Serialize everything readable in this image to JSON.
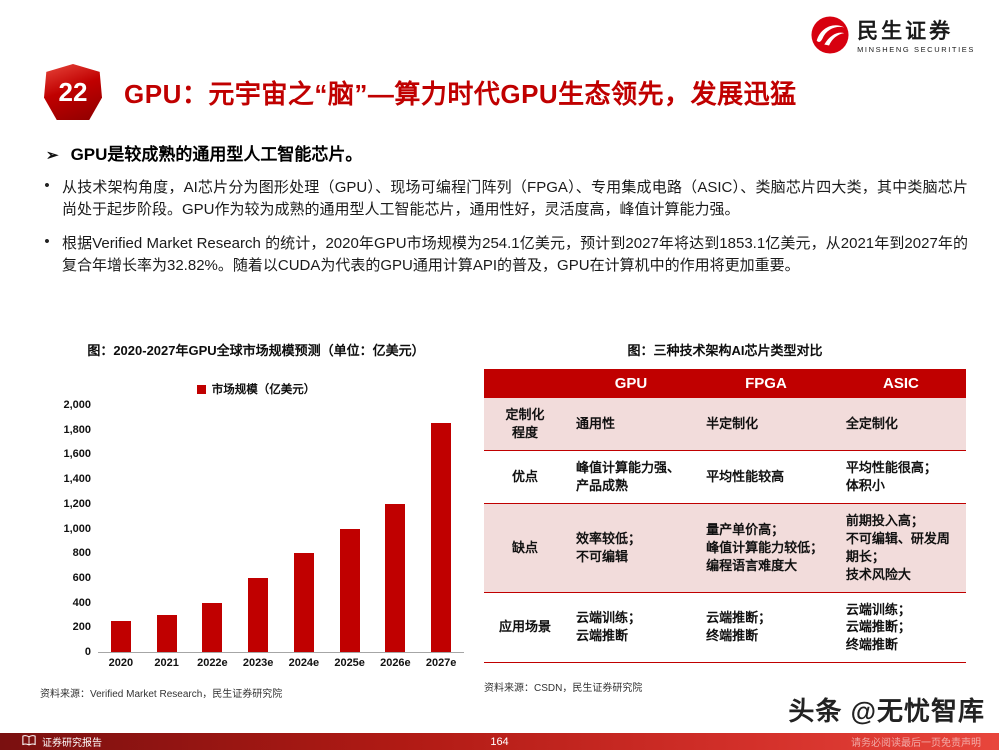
{
  "accent_color": "#c00000",
  "logo": {
    "name": "民生证券",
    "subtitle": "MINSHENG SECURITIES"
  },
  "header": {
    "badge": "22",
    "title": "GPU：元宇宙之“脑”—算力时代GPU生态领先，发展迅猛"
  },
  "summary": {
    "marker": "➢",
    "heading": "GPU是较成熟的通用型人工智能芯片。",
    "bullet_marker": "•",
    "bullets": [
      "从技术架构角度，AI芯片分为图形处理（GPU）、现场可编程门阵列（FPGA）、专用集成电路（ASIC）、类脑芯片四大类，其中类脑芯片尚处于起步阶段。GPU作为较为成熟的通用型人工智能芯片，通用性好，灵活度高，峰值计算能力强。",
      "根据Verified Market Research 的统计，2020年GPU市场规模为254.1亿美元，预计到2027年将达到1853.1亿美元，从2021年到2027年的复合年增长率为32.82%。随着以CUDA为代表的GPU通用计算API的普及，GPU在计算机中的作用将更加重要。"
    ]
  },
  "chart": {
    "title": "图：2020-2027年GPU全球市场规模预测（单位：亿美元）",
    "legend": "市场规模（亿美元）",
    "source": "资料来源：Verified Market Research，民生证券研究院"
  },
  "chart_data": {
    "type": "bar",
    "title": "2020-2027年GPU全球市场规模预测（单位：亿美元）",
    "categories": [
      "2020",
      "2021",
      "2022e",
      "2023e",
      "2024e",
      "2025e",
      "2026e",
      "2027e"
    ],
    "values": [
      254.1,
      300,
      400,
      600,
      800,
      1000,
      1200,
      1853.1
    ],
    "series_name": "市场规模（亿美元）",
    "xlabel": "",
    "ylabel": "",
    "ylim": [
      0,
      2000
    ],
    "yticks": [
      "0",
      "200",
      "400",
      "600",
      "800",
      "1,000",
      "1,200",
      "1,400",
      "1,600",
      "1,800",
      "2,000"
    ],
    "bar_color": "#c00000",
    "grid": false,
    "legend_position": "top"
  },
  "table": {
    "title": "图：三种技术架构AI芯片类型对比",
    "headers": [
      "",
      "GPU",
      "FPGA",
      "ASIC"
    ],
    "rows": [
      {
        "label": "定制化\n程度",
        "cells": [
          "通用性",
          "半定制化",
          "全定制化"
        ]
      },
      {
        "label": "优点",
        "cells": [
          "峰值计算能力强、产品成熟",
          "平均性能较高",
          "平均性能很高；\n体积小"
        ]
      },
      {
        "label": "缺点",
        "cells": [
          "效率较低；\n不可编辑",
          "量产单价高；\n峰值计算能力较低；\n编程语言难度大",
          "前期投入高；\n不可编辑、研发周期长；\n技术风险大"
        ]
      },
      {
        "label": "应用场景",
        "cells": [
          "云端训练；\n云端推断",
          "云端推断；\n终端推断",
          "云端训练；\n云端推断；\n终端推断"
        ]
      }
    ],
    "source": "资料来源：CSDN，民生证券研究院"
  },
  "footer": {
    "report_label": "证券研究报告",
    "page_number": "164",
    "disclaimer": "请务必阅读最后一页免责声明",
    "watermark": "头条 @无忧智库"
  }
}
